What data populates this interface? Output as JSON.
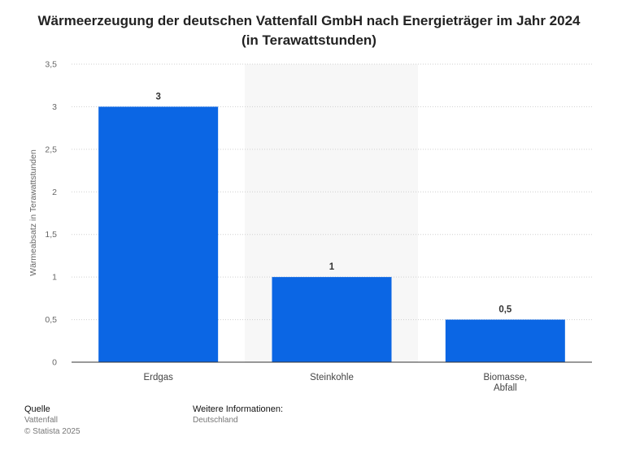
{
  "chart_data": {
    "type": "bar",
    "title": "Wärmeerzeugung der deutschen Vattenfall GmbH nach Energieträger im Jahr 2024",
    "subtitle": "(in Terawattstunden)",
    "ylabel": "Wärmeabsatz in Terawattstunden",
    "xlabel": "",
    "categories": [
      "Erdgas",
      "Steinkohle",
      "Biomasse, Abfall"
    ],
    "category_lines": [
      [
        "Erdgas"
      ],
      [
        "Steinkohle"
      ],
      [
        "Biomasse,",
        "Abfall"
      ]
    ],
    "values": [
      3,
      1,
      0.5
    ],
    "value_labels": [
      "3",
      "1",
      "0,5"
    ],
    "ylim": [
      0,
      3.5
    ],
    "yticks": [
      0,
      0.5,
      1,
      1.5,
      2,
      2.5,
      3,
      3.5
    ],
    "ytick_labels": [
      "0",
      "0,5",
      "1",
      "1,5",
      "2",
      "2,5",
      "3",
      "3,5"
    ],
    "grid": true,
    "bar_color": "#0b66e4"
  },
  "footer": {
    "source_heading": "Quelle",
    "source_name": "Vattenfall",
    "copyright": "© Statista 2025",
    "info_heading": "Weitere Informationen:",
    "info_text": "Deutschland"
  }
}
